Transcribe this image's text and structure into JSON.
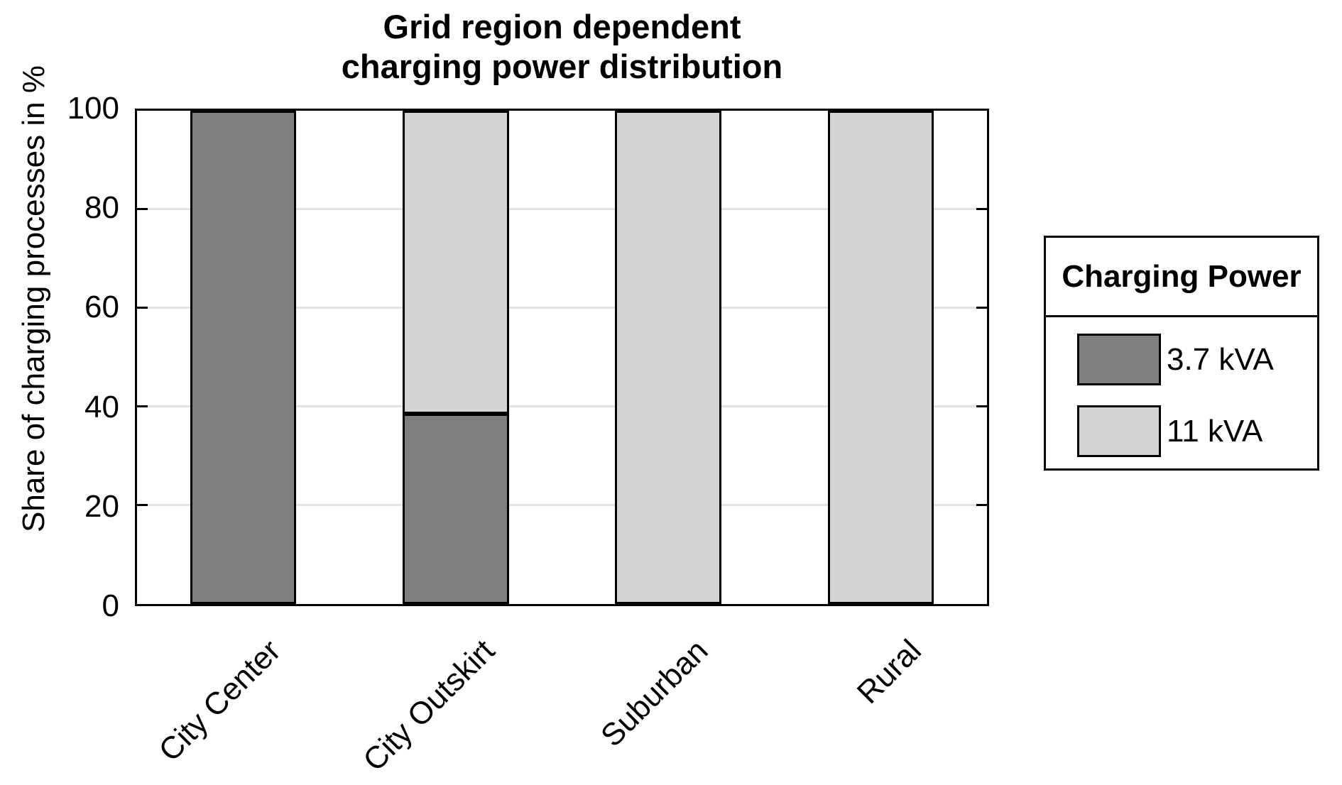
{
  "chart_data": {
    "type": "stacked-bar",
    "title_line1": "Grid region dependent",
    "title_line2": "charging power distribution",
    "ylabel": "Share of charging processes in %",
    "categories": [
      "City Center",
      "City Outskirt",
      "Suburban",
      "Rural"
    ],
    "series": [
      {
        "name": "3.7 kVA",
        "color": "#7f7f7f",
        "values": [
          100,
          38.5,
          0,
          0
        ]
      },
      {
        "name": "11 kVA",
        "color": "#d3d3d3",
        "values": [
          0,
          61.5,
          100,
          100
        ]
      }
    ],
    "ylim": [
      0,
      100
    ],
    "yticks": [
      0,
      20,
      40,
      60,
      80,
      100
    ],
    "grid": "horizontal",
    "x_label_rotation_deg": 45,
    "legend": {
      "title": "Charging Power",
      "position": "outside-right"
    },
    "colors": {
      "axis": "#000000",
      "grid": "#e3e3e3",
      "background": "#ffffff",
      "text": "#000000"
    }
  }
}
